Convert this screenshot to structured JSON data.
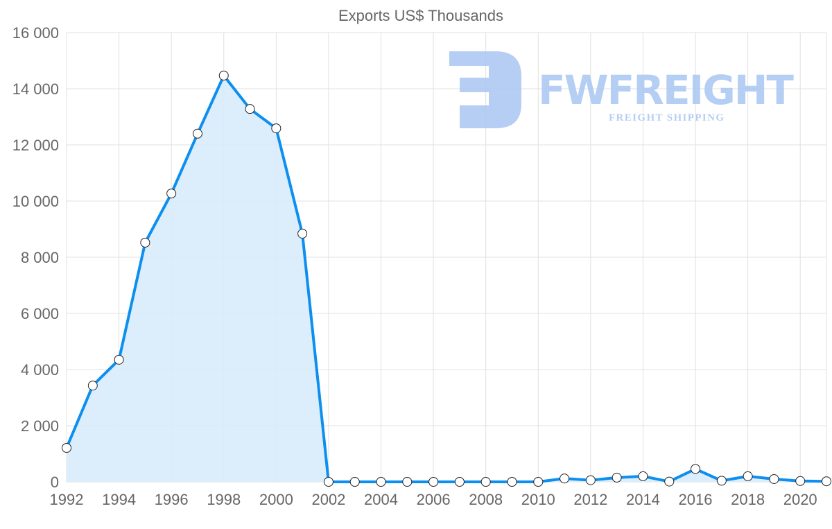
{
  "chart_data": {
    "type": "line",
    "title": "Exports US$ Thousands",
    "xlabel": "",
    "ylabel": "",
    "x": [
      1992,
      1993,
      1994,
      1995,
      1996,
      1997,
      1998,
      1999,
      2000,
      2001,
      2002,
      2003,
      2004,
      2005,
      2006,
      2007,
      2008,
      2009,
      2010,
      2011,
      2012,
      2013,
      2014,
      2015,
      2016,
      2017,
      2018,
      2019,
      2020,
      2021
    ],
    "series": [
      {
        "name": "Exports US$ Thousands",
        "values": [
          1210,
          3430,
          4350,
          8520,
          10270,
          12400,
          14470,
          13280,
          12590,
          8840,
          0,
          0,
          0,
          0,
          0,
          0,
          0,
          0,
          0,
          120,
          60,
          150,
          200,
          10,
          460,
          40,
          200,
          100,
          30,
          20
        ]
      }
    ],
    "xlim": [
      1992,
      2021
    ],
    "ylim": [
      0,
      16000
    ],
    "y_ticks": [
      0,
      2000,
      4000,
      6000,
      8000,
      10000,
      12000,
      14000,
      16000
    ],
    "y_tick_labels": [
      "0",
      "2 000",
      "4 000",
      "6 000",
      "8 000",
      "10 000",
      "12 000",
      "14 000",
      "16 000"
    ],
    "x_tick_labels": [
      "1992",
      "1994",
      "1996",
      "1998",
      "2000",
      "2002",
      "2004",
      "2006",
      "2008",
      "2010",
      "2012",
      "2014",
      "2016",
      "2018",
      "2020"
    ],
    "grid": true,
    "fill": true,
    "colors": {
      "line": "#0d8fef",
      "fill": "#d8ebfb",
      "point": "#ffffff",
      "grid": "#e0e0e0",
      "watermark": "#a9c6f2"
    }
  },
  "watermark": {
    "brand": "FWFREIGHT",
    "tagline": "FREIGHT SHIPPING"
  }
}
